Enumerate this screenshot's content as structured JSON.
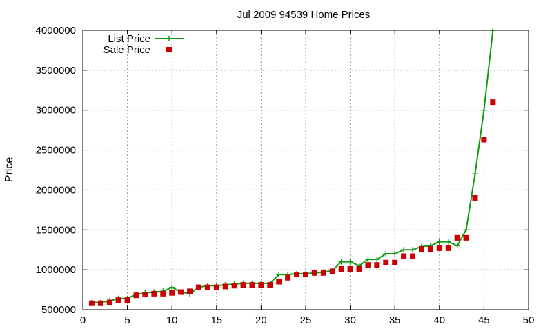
{
  "chart_data": {
    "type": "line",
    "title": "Jul 2009 94539 Home Prices",
    "xlabel": "",
    "ylabel": "Price",
    "xlim": [
      0,
      50
    ],
    "ylim": [
      500000,
      4000000
    ],
    "xticks": [
      0,
      5,
      10,
      15,
      20,
      25,
      30,
      35,
      40,
      45,
      50
    ],
    "yticks": [
      500000,
      1000000,
      1500000,
      2000000,
      2500000,
      3000000,
      3500000,
      4000000
    ],
    "grid": true,
    "legend_position": "top-left",
    "series": [
      {
        "name": "List Price",
        "style": "line-with-plus-markers",
        "color": "#119911",
        "x": [
          1,
          2,
          3,
          4,
          5,
          6,
          7,
          8,
          9,
          10,
          11,
          12,
          13,
          14,
          15,
          16,
          17,
          18,
          19,
          20,
          21,
          22,
          23,
          24,
          25,
          26,
          27,
          28,
          29,
          30,
          31,
          32,
          33,
          34,
          35,
          36,
          37,
          38,
          39,
          40,
          41,
          42,
          43,
          44,
          45,
          46
        ],
        "y": [
          590000,
          590000,
          610000,
          640000,
          640000,
          690000,
          710000,
          720000,
          730000,
          780000,
          720000,
          700000,
          780000,
          800000,
          800000,
          810000,
          820000,
          830000,
          830000,
          830000,
          830000,
          940000,
          940000,
          950000,
          950000,
          960000,
          970000,
          990000,
          1100000,
          1100000,
          1050000,
          1130000,
          1130000,
          1200000,
          1200000,
          1250000,
          1250000,
          1290000,
          1300000,
          1350000,
          1350000,
          1300000,
          1500000,
          2200000,
          3000000,
          4000000
        ]
      },
      {
        "name": "Sale Price",
        "style": "square-markers",
        "color": "#cc0000",
        "x": [
          1,
          2,
          3,
          4,
          5,
          6,
          7,
          8,
          9,
          10,
          11,
          12,
          13,
          14,
          15,
          16,
          17,
          18,
          19,
          20,
          21,
          22,
          23,
          24,
          25,
          26,
          27,
          28,
          29,
          30,
          31,
          32,
          33,
          34,
          35,
          36,
          37,
          38,
          39,
          40,
          41,
          42,
          43,
          44,
          45,
          46
        ],
        "y": [
          580000,
          580000,
          590000,
          620000,
          620000,
          680000,
          690000,
          700000,
          700000,
          710000,
          720000,
          730000,
          780000,
          780000,
          780000,
          790000,
          800000,
          810000,
          810000,
          810000,
          810000,
          850000,
          900000,
          940000,
          940000,
          960000,
          960000,
          980000,
          1010000,
          1010000,
          1010000,
          1060000,
          1060000,
          1090000,
          1090000,
          1170000,
          1170000,
          1260000,
          1260000,
          1270000,
          1270000,
          1400000,
          1400000,
          1900000,
          2630000,
          3100000
        ]
      }
    ]
  }
}
